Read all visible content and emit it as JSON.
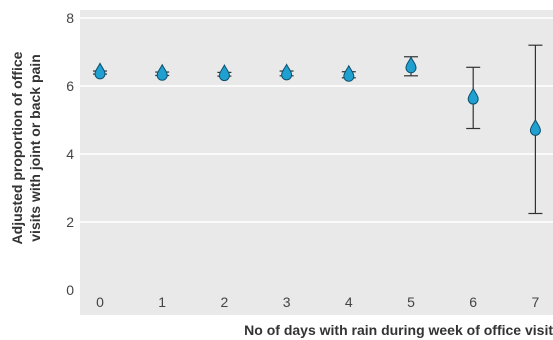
{
  "chart_data": {
    "type": "scatter",
    "xlabel": "No of days with rain during week of office visit",
    "ylabel_lines": [
      "Adjusted proportion of office",
      "visits with joint or back pain"
    ],
    "x": [
      0,
      1,
      2,
      3,
      4,
      5,
      6,
      7
    ],
    "x_tick_labels": [
      "0",
      "1",
      "2",
      "3",
      "4",
      "5",
      "6",
      "7"
    ],
    "y_ticks": [
      0,
      2,
      4,
      6,
      8
    ],
    "y_tick_labels": [
      "0",
      "2",
      "4",
      "6",
      "8"
    ],
    "ylim": [
      0,
      8
    ],
    "xlim": [
      -0.4,
      7.3
    ],
    "grid": true,
    "series": [
      {
        "values": [
          6.4,
          6.36,
          6.35,
          6.37,
          6.33,
          6.58,
          5.66,
          4.74
        ],
        "ci_lower": [
          6.35,
          6.31,
          6.29,
          6.3,
          6.24,
          6.3,
          4.75,
          2.25
        ],
        "ci_upper": [
          6.44,
          6.41,
          6.4,
          6.44,
          6.42,
          6.86,
          6.55,
          7.2
        ]
      }
    ],
    "colors": {
      "panel_background": "#e9e9e9",
      "grid": "#ffffff",
      "error_bar": "#333333",
      "marker_fill": "#1fa0d0",
      "marker_stroke": "#0d4f6c"
    },
    "marker_shape": "raindrop"
  }
}
